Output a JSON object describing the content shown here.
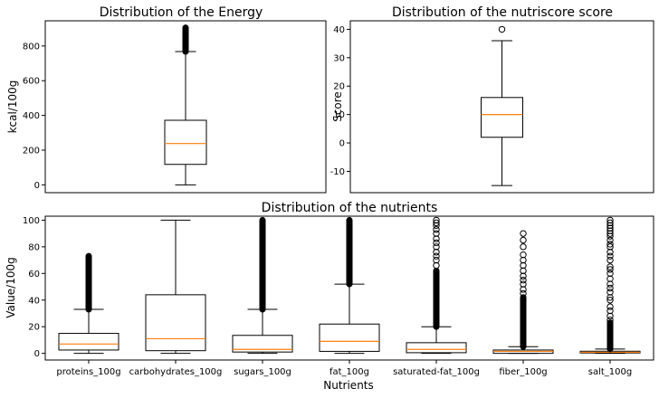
{
  "chart_data": [
    {
      "type": "box",
      "title": "Distribution of the Energy",
      "xlabel": "",
      "ylabel": "kcal/100g",
      "ylim": [
        -45,
        945
      ],
      "yticks": [
        0,
        200,
        400,
        600,
        800
      ],
      "categories": [
        ""
      ],
      "boxes": [
        {
          "q1": 118,
          "median": 238,
          "q3": 372,
          "whisker_low": 0,
          "whisker_high": 768,
          "flier_range": [
            768,
            905
          ]
        }
      ]
    },
    {
      "type": "box",
      "title": "Distribution of the nutriscore score",
      "xlabel": "",
      "ylabel": "Score",
      "ylim": [
        -17.5,
        43
      ],
      "yticks": [
        -10,
        0,
        10,
        20,
        30,
        40
      ],
      "categories": [
        ""
      ],
      "boxes": [
        {
          "q1": 2,
          "median": 10,
          "q3": 16,
          "whisker_low": -15,
          "whisker_high": 36,
          "fliers": [
            40
          ]
        }
      ]
    },
    {
      "type": "box",
      "title": "Distribution of the nutrients",
      "xlabel": "Nutrients",
      "ylabel": "Value/100g",
      "ylim": [
        -5,
        103
      ],
      "yticks": [
        0,
        20,
        40,
        60,
        80,
        100
      ],
      "categories": [
        "proteins_100g",
        "carbohydrates_100g",
        "sugars_100g",
        "fat_100g",
        "saturated-fat_100g",
        "fiber_100g",
        "salt_100g"
      ],
      "boxes": [
        {
          "q1": 2.5,
          "median": 7,
          "q3": 15,
          "whisker_low": 0,
          "whisker_high": 33,
          "flier_range": [
            33,
            73
          ]
        },
        {
          "q1": 2,
          "median": 11,
          "q3": 44,
          "whisker_low": 0,
          "whisker_high": 100
        },
        {
          "q1": 1,
          "median": 3,
          "q3": 13.5,
          "whisker_low": 0,
          "whisker_high": 33,
          "flier_range": [
            33,
            100
          ]
        },
        {
          "q1": 1.5,
          "median": 9,
          "q3": 22,
          "whisker_low": 0,
          "whisker_high": 52,
          "flier_range": [
            52,
            100
          ]
        },
        {
          "q1": 0.5,
          "median": 3,
          "q3": 8,
          "whisker_low": 0,
          "whisker_high": 20,
          "flier_range": [
            20,
            62
          ],
          "fliers": [
            66,
            70,
            73,
            76,
            80,
            83,
            86,
            90,
            93,
            96,
            98,
            100
          ]
        },
        {
          "q1": 0,
          "median": 1.5,
          "q3": 2.5,
          "whisker_low": 0,
          "whisker_high": 5,
          "flier_range": [
            5,
            42
          ],
          "fliers": [
            45,
            48,
            52,
            55,
            58,
            62,
            66,
            70,
            74,
            80,
            85,
            90
          ]
        },
        {
          "q1": 0.3,
          "median": 0.8,
          "q3": 1.6,
          "whisker_low": 0,
          "whisker_high": 3.2,
          "flier_range": [
            3.2,
            23
          ],
          "fliers": [
            25,
            28,
            32,
            35,
            40,
            42,
            46,
            49,
            52,
            56,
            60,
            63,
            65,
            70,
            73,
            76,
            80,
            82,
            85,
            88,
            90,
            92,
            94,
            96,
            98,
            100
          ]
        }
      ]
    }
  ]
}
